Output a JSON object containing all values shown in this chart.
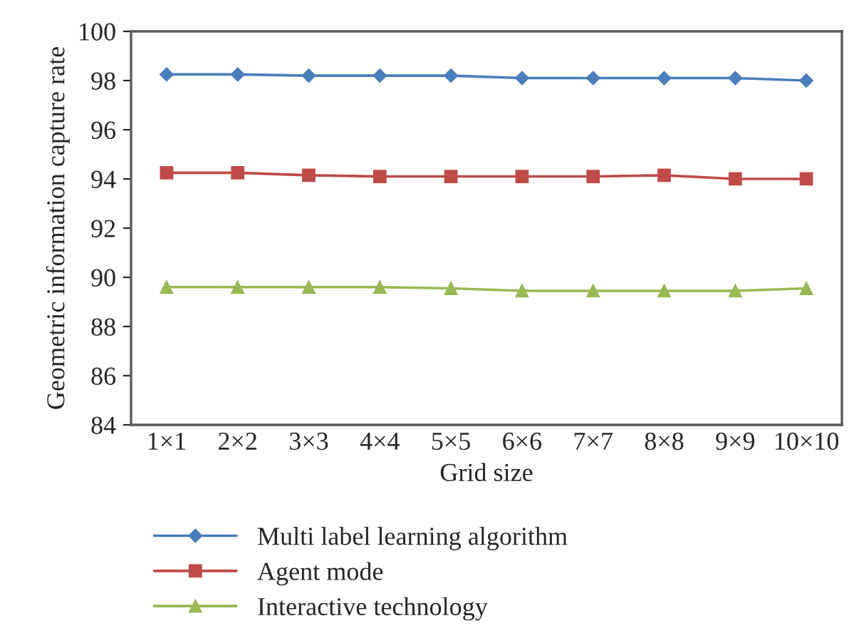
{
  "chart_data": {
    "type": "line",
    "xlabel": "Grid size",
    "ylabel": "Geometric information capture rate",
    "categories": [
      "1×1",
      "2×2",
      "3×3",
      "4×4",
      "5×5",
      "6×6",
      "7×7",
      "8×8",
      "9×9",
      "10×10"
    ],
    "series": [
      {
        "name": "Multi label learning algorithm",
        "color": "#4a7ebb",
        "marker": "diamond",
        "values": [
          98.25,
          98.25,
          98.2,
          98.2,
          98.2,
          98.1,
          98.1,
          98.1,
          98.1,
          98.0
        ]
      },
      {
        "name": "Agent mode",
        "color": "#be4b48",
        "marker": "square",
        "values": [
          94.25,
          94.25,
          94.15,
          94.1,
          94.1,
          94.1,
          94.1,
          94.15,
          94.0,
          94.0
        ]
      },
      {
        "name": "Interactive technology",
        "color": "#98b954",
        "marker": "triangle",
        "values": [
          89.6,
          89.6,
          89.6,
          89.6,
          89.55,
          89.45,
          89.45,
          89.45,
          89.45,
          89.55
        ]
      }
    ],
    "ylim": [
      84,
      100
    ],
    "yticks": [
      84,
      86,
      88,
      90,
      92,
      94,
      96,
      98,
      100
    ],
    "grid": false,
    "legend": "bottom",
    "line_style": "solid"
  }
}
